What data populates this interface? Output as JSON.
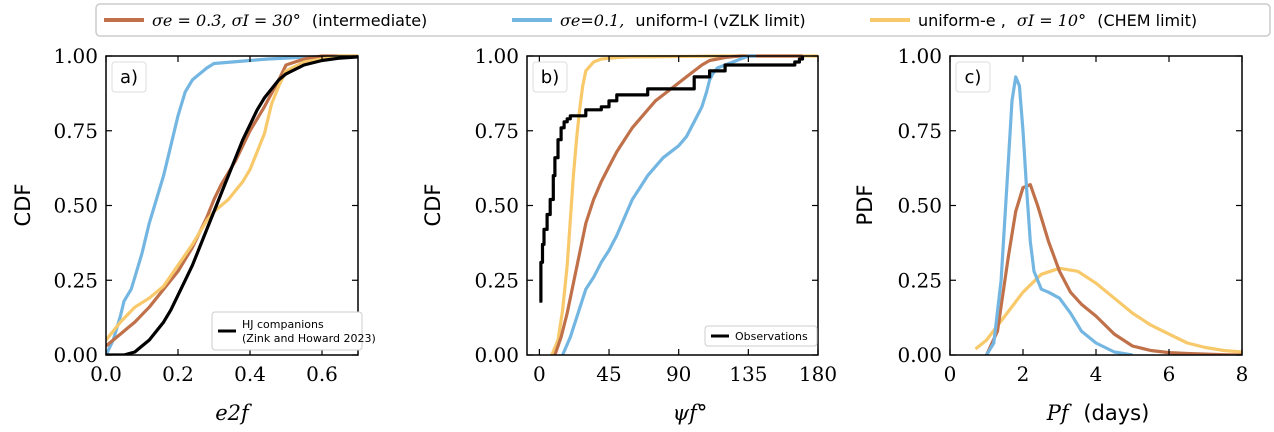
{
  "colors": {
    "intermediate": "#C0714A",
    "vzlk": "#74B6E2",
    "chem": "#F8C96A",
    "observations": "#000000"
  },
  "legend": {
    "items": [
      {
        "key": "intermediate",
        "math": "σe = 0.3, σI = 30°",
        "label": "(intermediate)"
      },
      {
        "key": "vzlk",
        "math": "σe=0.1,",
        "label": "uniform-I (vZLK limit)"
      },
      {
        "key": "chem",
        "label_prefix": "uniform-e ,",
        "math": "σI = 10°",
        "label": "(CHEM limit)"
      }
    ]
  },
  "panels": {
    "a": {
      "tag": "a)",
      "ylabel": "CDF",
      "xlabel": "e2f",
      "inset_legend_lines": [
        "HJ companions",
        "(Zink and Howard 2023)"
      ]
    },
    "b": {
      "tag": "b)",
      "ylabel": "CDF",
      "xlabel": "ψf°",
      "inset_legend_lines": [
        "Observations"
      ]
    },
    "c": {
      "tag": "c)",
      "ylabel": "PDF",
      "xlabel_math": "Pf",
      "xlabel_unit": "(days)"
    }
  },
  "chart_data": [
    {
      "type": "line",
      "panel": "a",
      "xlim": [
        0,
        0.7
      ],
      "ylim": [
        0,
        1
      ],
      "xticks": [
        0.0,
        0.2,
        0.4,
        0.6
      ],
      "xtick_labels": [
        "0.0",
        "0.2",
        "0.4",
        "0.6"
      ],
      "yticks": [
        0,
        0.25,
        0.5,
        0.75,
        1.0
      ],
      "ytick_labels": [
        "0.00",
        "0.25",
        "0.50",
        "0.75",
        "1.00"
      ],
      "series": [
        {
          "key": "vzlk",
          "x": [
            0.0,
            0.02,
            0.04,
            0.05,
            0.07,
            0.08,
            0.1,
            0.12,
            0.14,
            0.16,
            0.18,
            0.2,
            0.22,
            0.24,
            0.26,
            0.28,
            0.3,
            0.35,
            0.4,
            0.45,
            0.5,
            0.55,
            0.6,
            0.65,
            0.7
          ],
          "y": [
            0.0,
            0.05,
            0.13,
            0.18,
            0.22,
            0.26,
            0.34,
            0.44,
            0.52,
            0.6,
            0.7,
            0.8,
            0.88,
            0.92,
            0.94,
            0.96,
            0.975,
            0.98,
            0.985,
            0.99,
            0.993,
            0.996,
            0.998,
            0.999,
            1.0
          ]
        },
        {
          "key": "intermediate",
          "x": [
            0.0,
            0.04,
            0.08,
            0.12,
            0.16,
            0.2,
            0.24,
            0.28,
            0.3,
            0.32,
            0.36,
            0.4,
            0.44,
            0.48,
            0.5,
            0.55,
            0.6,
            0.65,
            0.7
          ],
          "y": [
            0.03,
            0.07,
            0.11,
            0.16,
            0.22,
            0.28,
            0.36,
            0.46,
            0.52,
            0.57,
            0.65,
            0.75,
            0.83,
            0.92,
            0.97,
            0.99,
            1.0,
            1.0,
            1.0
          ]
        },
        {
          "key": "chem",
          "x": [
            0.0,
            0.04,
            0.08,
            0.12,
            0.16,
            0.2,
            0.24,
            0.28,
            0.3,
            0.32,
            0.34,
            0.36,
            0.38,
            0.4,
            0.42,
            0.44,
            0.46,
            0.48,
            0.5,
            0.55,
            0.6,
            0.65,
            0.7
          ],
          "y": [
            0.05,
            0.11,
            0.16,
            0.19,
            0.23,
            0.3,
            0.37,
            0.45,
            0.48,
            0.5,
            0.52,
            0.55,
            0.58,
            0.62,
            0.68,
            0.74,
            0.84,
            0.9,
            0.95,
            0.98,
            0.99,
            1.0,
            1.0
          ]
        },
        {
          "key": "observations",
          "x": [
            0.0,
            0.05,
            0.08,
            0.1,
            0.12,
            0.14,
            0.16,
            0.18,
            0.2,
            0.22,
            0.24,
            0.26,
            0.28,
            0.3,
            0.32,
            0.34,
            0.36,
            0.38,
            0.4,
            0.42,
            0.44,
            0.46,
            0.48,
            0.5,
            0.55,
            0.6,
            0.65,
            0.7
          ],
          "y": [
            0.0,
            0.0,
            0.01,
            0.03,
            0.05,
            0.08,
            0.11,
            0.15,
            0.2,
            0.25,
            0.3,
            0.36,
            0.42,
            0.48,
            0.54,
            0.6,
            0.66,
            0.72,
            0.77,
            0.82,
            0.86,
            0.89,
            0.92,
            0.94,
            0.97,
            0.985,
            0.993,
            0.997
          ]
        }
      ]
    },
    {
      "type": "line",
      "panel": "b",
      "xlim": [
        -8,
        180
      ],
      "ylim": [
        0,
        1
      ],
      "xticks": [
        0,
        45,
        90,
        135,
        180
      ],
      "xtick_labels": [
        "0",
        "45",
        "90",
        "135",
        "180"
      ],
      "yticks": [
        0,
        0.25,
        0.5,
        0.75,
        1.0
      ],
      "ytick_labels": [
        "0.00",
        "0.25",
        "0.50",
        "0.75",
        "1.00"
      ],
      "series": [
        {
          "key": "chem",
          "x": [
            8,
            12,
            15,
            18,
            20,
            22,
            24,
            26,
            28,
            30,
            35,
            40,
            50,
            60,
            80,
            100,
            120,
            150,
            170,
            180
          ],
          "y": [
            0.0,
            0.05,
            0.15,
            0.3,
            0.45,
            0.6,
            0.72,
            0.82,
            0.9,
            0.95,
            0.98,
            0.99,
            0.995,
            0.997,
            0.998,
            0.999,
            1.0,
            1.0,
            1.0,
            1.0
          ]
        },
        {
          "key": "intermediate",
          "x": [
            10,
            14,
            18,
            22,
            26,
            30,
            35,
            40,
            45,
            50,
            55,
            60,
            65,
            70,
            75,
            80,
            85,
            90,
            95,
            100,
            105,
            110,
            115,
            120,
            125,
            130,
            140,
            150,
            165,
            170
          ],
          "y": [
            0.0,
            0.06,
            0.14,
            0.24,
            0.34,
            0.44,
            0.52,
            0.58,
            0.63,
            0.68,
            0.72,
            0.76,
            0.79,
            0.82,
            0.85,
            0.87,
            0.89,
            0.91,
            0.93,
            0.95,
            0.97,
            0.985,
            0.99,
            0.995,
            0.998,
            1.0,
            1.0,
            1.0,
            1.0,
            1.0
          ]
        },
        {
          "key": "vzlk",
          "x": [
            15,
            20,
            25,
            30,
            35,
            40,
            45,
            50,
            55,
            60,
            65,
            70,
            75,
            80,
            85,
            90,
            95,
            100,
            105,
            108,
            110,
            112,
            115,
            120,
            125,
            130,
            135,
            140
          ],
          "y": [
            0.0,
            0.06,
            0.14,
            0.22,
            0.26,
            0.31,
            0.35,
            0.4,
            0.46,
            0.52,
            0.56,
            0.6,
            0.63,
            0.66,
            0.68,
            0.7,
            0.73,
            0.78,
            0.83,
            0.88,
            0.92,
            0.94,
            0.96,
            0.97,
            0.98,
            0.99,
            1.0,
            1.0
          ]
        },
        {
          "key": "observations",
          "step": true,
          "x": [
            0,
            1,
            2,
            3,
            5,
            7,
            9,
            10,
            12,
            14,
            16,
            18,
            20,
            30,
            40,
            45,
            50,
            60,
            70,
            100,
            110,
            120,
            150,
            165,
            168,
            170
          ],
          "y": [
            0.18,
            0.31,
            0.37,
            0.42,
            0.47,
            0.52,
            0.6,
            0.66,
            0.72,
            0.76,
            0.78,
            0.79,
            0.8,
            0.82,
            0.83,
            0.85,
            0.87,
            0.87,
            0.89,
            0.93,
            0.95,
            0.97,
            0.97,
            0.98,
            0.99,
            1.0
          ]
        }
      ]
    },
    {
      "type": "line",
      "panel": "c",
      "xlim": [
        0,
        8
      ],
      "ylim": [
        0,
        1
      ],
      "xticks": [
        0,
        2,
        4,
        6,
        8
      ],
      "xtick_labels": [
        "0",
        "2",
        "4",
        "6",
        "8"
      ],
      "yticks": [
        0,
        0.25,
        0.5,
        0.75,
        1.0
      ],
      "ytick_labels": [
        "0.00",
        "0.25",
        "0.50",
        "0.75",
        "1.00"
      ],
      "series": [
        {
          "key": "chem",
          "x": [
            0.7,
            1.0,
            1.5,
            2.0,
            2.5,
            3.0,
            3.5,
            4.0,
            4.5,
            5.0,
            5.5,
            6.0,
            6.5,
            7.0,
            7.5,
            8.0
          ],
          "y": [
            0.02,
            0.05,
            0.13,
            0.21,
            0.27,
            0.29,
            0.28,
            0.24,
            0.19,
            0.14,
            0.1,
            0.07,
            0.04,
            0.025,
            0.015,
            0.01
          ]
        },
        {
          "key": "intermediate",
          "x": [
            1.0,
            1.3,
            1.6,
            1.8,
            2.0,
            2.2,
            2.4,
            2.7,
            3.0,
            3.3,
            3.6,
            4.0,
            4.5,
            5.0,
            5.5,
            6.0,
            6.5,
            7.0,
            7.5,
            8.0
          ],
          "y": [
            0.0,
            0.08,
            0.33,
            0.48,
            0.56,
            0.57,
            0.5,
            0.38,
            0.28,
            0.21,
            0.17,
            0.13,
            0.07,
            0.03,
            0.015,
            0.008,
            0.005,
            0.003,
            0.001,
            0.0
          ]
        },
        {
          "key": "vzlk",
          "x": [
            1.0,
            1.2,
            1.4,
            1.6,
            1.7,
            1.8,
            1.9,
            2.0,
            2.1,
            2.2,
            2.3,
            2.5,
            2.7,
            3.0,
            3.3,
            3.6,
            4.0,
            4.5,
            5.0
          ],
          "y": [
            0.0,
            0.04,
            0.25,
            0.65,
            0.85,
            0.93,
            0.9,
            0.75,
            0.55,
            0.38,
            0.28,
            0.22,
            0.21,
            0.19,
            0.14,
            0.08,
            0.04,
            0.01,
            0.0
          ]
        }
      ]
    }
  ]
}
